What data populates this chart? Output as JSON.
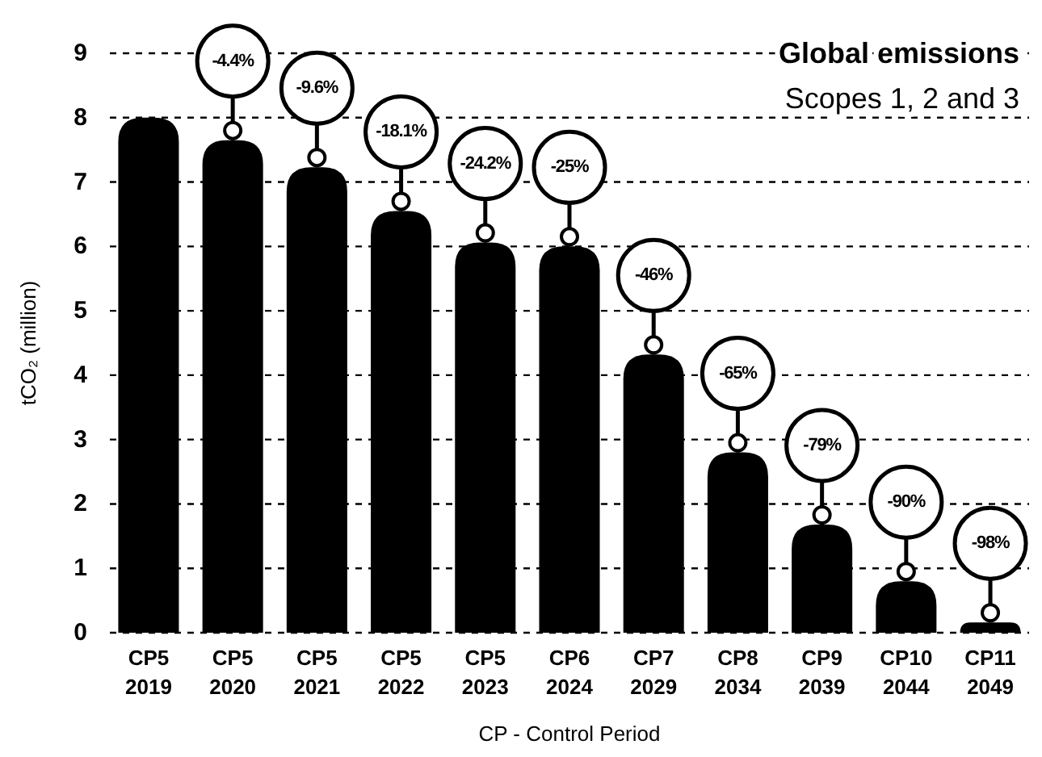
{
  "chart_data": {
    "type": "bar",
    "title": "Global emissions",
    "subtitle": "Scopes 1, 2 and 3",
    "xlabel": "CP - Control Period",
    "ylabel": "tCO₂ (million)",
    "categories": [
      "CP5\n2019",
      "CP5\n2020",
      "CP5\n2021",
      "CP5\n2022",
      "CP5\n2023",
      "CP6\n2024",
      "CP7\n2029",
      "CP8\n2034",
      "CP9\n2039",
      "CP10\n2044",
      "CP11\n2049"
    ],
    "values": [
      8.0,
      7.65,
      7.23,
      6.55,
      6.06,
      6.0,
      4.32,
      2.8,
      1.68,
      0.8,
      0.16
    ],
    "annotations": [
      "-4.4%",
      "-9.6%",
      "-18.1%",
      "-24.2%",
      "-25%",
      "-46%",
      "-65%",
      "-79%",
      "-90%",
      "-98%"
    ],
    "color": "#000000",
    "ylim": [
      0,
      9
    ],
    "yticks": [
      0,
      1,
      2,
      3,
      4,
      5,
      6,
      7,
      8,
      9
    ],
    "grid": "y"
  }
}
